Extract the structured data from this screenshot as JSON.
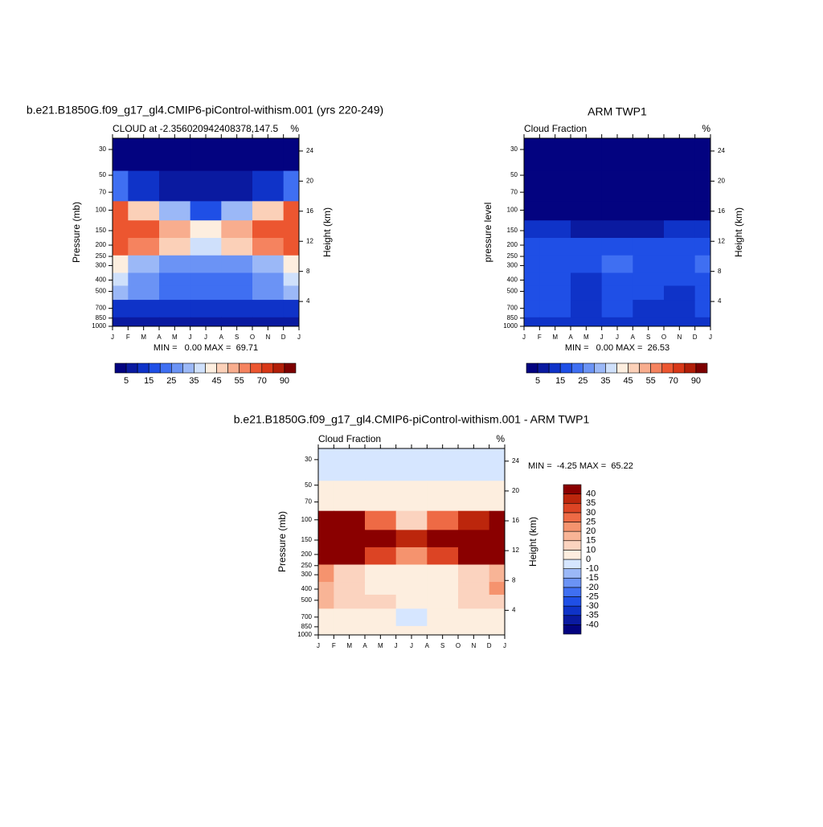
{
  "chart_data": [
    {
      "type": "contour",
      "title": "b.e21.B1850G.f09_g17_gl4.CMIP6-piControl-withism.001 (yrs 220-249)",
      "left_string": "CLOUD at -2.356020942408378,147.5",
      "right_string": "%",
      "ylabel": "Pressure (mb)",
      "y2label": "Height (km)",
      "stats": "MIN =   0.00 MAX =  69.71",
      "categories": [
        "J",
        "F",
        "M",
        "A",
        "M",
        "J",
        "J",
        "A",
        "S",
        "O",
        "N",
        "D",
        "J"
      ],
      "x": [
        0,
        2,
        4,
        6,
        8,
        10,
        12
      ],
      "y": [
        30,
        70,
        100,
        150,
        200,
        300,
        400,
        500,
        700,
        1000
      ],
      "z": [
        [
          1,
          1,
          1,
          1,
          1,
          1,
          1
        ],
        [
          22,
          10,
          5,
          5,
          5,
          10,
          22
        ],
        [
          60,
          45,
          30,
          15,
          30,
          45,
          60
        ],
        [
          65,
          62,
          50,
          40,
          50,
          62,
          66
        ],
        [
          60,
          55,
          45,
          38,
          45,
          55,
          60
        ],
        [
          40,
          30,
          25,
          25,
          25,
          30,
          40
        ],
        [
          35,
          25,
          20,
          20,
          20,
          25,
          38
        ],
        [
          30,
          25,
          22,
          22,
          22,
          25,
          30
        ],
        [
          12,
          12,
          12,
          12,
          12,
          12,
          12
        ],
        [
          8,
          8,
          8,
          8,
          8,
          8,
          8
        ]
      ],
      "ylim": [
        1000,
        24
      ],
      "log_y": true,
      "yticks": [
        30,
        50,
        70,
        100,
        150,
        200,
        250,
        300,
        400,
        500,
        700,
        850,
        1000
      ],
      "y2lim": [
        0.7,
        25.7
      ],
      "y2ticks": [
        4,
        8,
        12,
        16,
        20,
        24
      ],
      "colorbar": {
        "orientation": "horizontal",
        "levels": [
          5,
          10,
          15,
          20,
          25,
          30,
          35,
          40,
          45,
          50,
          55,
          60,
          70,
          80,
          90
        ],
        "colors": [
          "#030380",
          "#0a1aa0",
          "#0f33c8",
          "#1f4fe6",
          "#3f6ff2",
          "#6b93f5",
          "#9bb8f7",
          "#cfe0fb",
          "#fdeedf",
          "#fbd0b8",
          "#f8ad8e",
          "#f5835f",
          "#ec5630",
          "#d83818",
          "#b21e08",
          "#7d0000"
        ]
      }
    },
    {
      "type": "contour",
      "title": "ARM TWP1",
      "left_string": "Cloud Fraction",
      "right_string": "%",
      "ylabel": "pressure level",
      "y2label": "Height (km)",
      "stats": "MIN =   0.00 MAX =  26.53",
      "categories": [
        "J",
        "F",
        "M",
        "A",
        "M",
        "J",
        "J",
        "A",
        "S",
        "O",
        "N",
        "D",
        "J"
      ],
      "x": [
        0,
        2,
        4,
        6,
        8,
        10,
        12
      ],
      "y": [
        30,
        70,
        100,
        150,
        200,
        300,
        400,
        500,
        700,
        1000
      ],
      "z": [
        [
          1,
          1,
          1,
          1,
          1,
          1,
          1
        ],
        [
          1,
          1,
          1,
          1,
          1,
          1,
          1
        ],
        [
          3,
          3,
          3,
          3,
          3,
          3,
          3
        ],
        [
          10,
          10,
          9,
          8,
          9,
          10,
          11
        ],
        [
          15,
          15,
          16,
          16,
          16,
          15,
          15
        ],
        [
          18,
          18,
          18,
          22,
          18,
          18,
          22
        ],
        [
          17,
          17,
          14,
          18,
          17,
          16,
          18
        ],
        [
          17,
          16,
          12,
          17,
          16,
          14,
          17
        ],
        [
          17,
          15,
          11,
          15,
          14,
          12,
          16
        ],
        [
          13,
          13,
          13,
          13,
          13,
          13,
          13
        ]
      ],
      "ylim": [
        1000,
        24
      ],
      "log_y": true,
      "yticks": [
        30,
        50,
        70,
        100,
        150,
        200,
        250,
        300,
        400,
        500,
        700,
        850,
        1000
      ],
      "y2lim": [
        0.7,
        25.7
      ],
      "y2ticks": [
        4,
        8,
        12,
        16,
        20,
        24
      ],
      "colorbar": {
        "orientation": "horizontal",
        "levels": [
          5,
          10,
          15,
          20,
          25,
          30,
          35,
          40,
          45,
          50,
          55,
          60,
          70,
          80,
          90
        ],
        "colors": [
          "#030380",
          "#0a1aa0",
          "#0f33c8",
          "#1f4fe6",
          "#3f6ff2",
          "#6b93f5",
          "#9bb8f7",
          "#cfe0fb",
          "#fdeedf",
          "#fbd0b8",
          "#f8ad8e",
          "#f5835f",
          "#ec5630",
          "#d83818",
          "#b21e08",
          "#7d0000"
        ]
      }
    },
    {
      "type": "contour",
      "title": "b.e21.B1850G.f09_g17_gl4.CMIP6-piControl-withism.001 - ARM TWP1",
      "left_string": "Cloud Fraction",
      "right_string": "%",
      "ylabel": "Pressure (mb)",
      "y2label": "Height (km)",
      "stats": "MIN =  -4.25 MAX =  65.22",
      "categories": [
        "J",
        "F",
        "M",
        "A",
        "M",
        "J",
        "J",
        "A",
        "S",
        "O",
        "N",
        "D",
        "J"
      ],
      "x": [
        0,
        2,
        4,
        6,
        8,
        10,
        12
      ],
      "y": [
        30,
        70,
        100,
        150,
        200,
        300,
        400,
        500,
        700,
        1000
      ],
      "z": [
        [
          -5,
          -5,
          -5,
          -5,
          -5,
          -5,
          -5
        ],
        [
          5,
          4,
          3,
          3,
          3,
          4,
          5
        ],
        [
          50,
          40,
          25,
          10,
          25,
          38,
          50
        ],
        [
          55,
          55,
          45,
          35,
          45,
          55,
          55
        ],
        [
          45,
          40,
          30,
          22,
          30,
          40,
          45
        ],
        [
          20,
          12,
          8,
          5,
          8,
          12,
          18
        ],
        [
          18,
          12,
          8,
          5,
          5,
          10,
          20
        ],
        [
          15,
          10,
          10,
          5,
          6,
          10,
          14
        ],
        [
          5,
          5,
          5,
          -2,
          5,
          5,
          5
        ],
        [
          3,
          3,
          3,
          3,
          3,
          3,
          3
        ]
      ],
      "ylim": [
        1000,
        24
      ],
      "log_y": true,
      "yticks": [
        30,
        50,
        70,
        100,
        150,
        200,
        250,
        300,
        400,
        500,
        700,
        850,
        1000
      ],
      "y2lim": [
        0.7,
        25.7
      ],
      "y2ticks": [
        4,
        8,
        12,
        16,
        20,
        24
      ],
      "colorbar": {
        "orientation": "vertical",
        "levels": [
          -40,
          -35,
          -30,
          -25,
          -20,
          -15,
          -10,
          0,
          10,
          15,
          20,
          25,
          30,
          35,
          40
        ],
        "colors": [
          "#030380",
          "#0a1aa0",
          "#0f33c8",
          "#1f4fe6",
          "#3f6ff2",
          "#6b93f5",
          "#9bb8f7",
          "#d6e6ff",
          "#fdeedf",
          "#fbd3bf",
          "#f8b496",
          "#f5936e",
          "#ee6a45",
          "#dc4424",
          "#bc260c",
          "#8a0000"
        ]
      }
    }
  ]
}
